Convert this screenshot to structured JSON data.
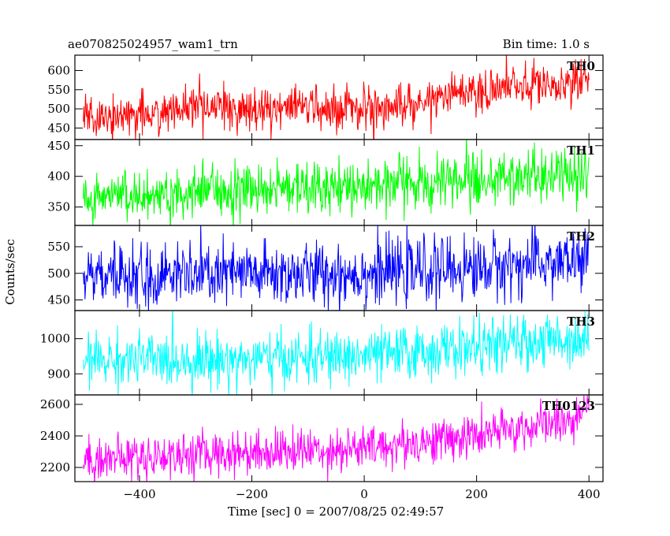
{
  "chart_data": {
    "type": "line",
    "title": "ae070825024957_wam1_trn",
    "bin_time": "Bin time: 1.0 s",
    "xlabel": "Time [sec] 0 = 2007/08/25 02:49:57",
    "ylabel": "Counts/sec",
    "xlim": [
      -515,
      425
    ],
    "xticks": [
      -400,
      -200,
      0,
      200,
      400
    ],
    "grid": false,
    "legend": "none",
    "panels": [
      {
        "name": "TH0",
        "color": "#ff0000",
        "ylim": [
          420,
          640
        ],
        "yticks": [
          450,
          500,
          550,
          600
        ],
        "trend": [
          [
            -500,
            475
          ],
          [
            -300,
            500
          ],
          [
            0,
            505
          ],
          [
            100,
            515
          ],
          [
            120,
            530
          ],
          [
            300,
            560
          ],
          [
            400,
            575
          ]
        ],
        "noise": 28
      },
      {
        "name": "TH1",
        "color": "#00ff00",
        "ylim": [
          320,
          460
        ],
        "yticks": [
          350,
          400,
          450
        ],
        "trend": [
          [
            -500,
            365
          ],
          [
            -200,
            380
          ],
          [
            0,
            385
          ],
          [
            200,
            395
          ],
          [
            400,
            400
          ]
        ],
        "noise": 22
      },
      {
        "name": "TH2",
        "color": "#0000ff",
        "ylim": [
          430,
          590
        ],
        "yticks": [
          450,
          500,
          550
        ],
        "trend": [
          [
            -500,
            495
          ],
          [
            0,
            500
          ],
          [
            200,
            510
          ],
          [
            400,
            525
          ]
        ],
        "noise": 30
      },
      {
        "name": "TH3",
        "color": "#00ffff",
        "ylim": [
          840,
          1080
        ],
        "yticks": [
          900,
          1000
        ],
        "trend": [
          [
            -500,
            940
          ],
          [
            -200,
            940
          ],
          [
            0,
            950
          ],
          [
            200,
            975
          ],
          [
            400,
            1005
          ]
        ],
        "noise": 38
      },
      {
        "name": "TH0123",
        "color": "#ff00ff",
        "ylim": [
          2110,
          2660
        ],
        "yticks": [
          2200,
          2400,
          2600
        ],
        "trend": [
          [
            -500,
            2250
          ],
          [
            -200,
            2300
          ],
          [
            0,
            2320
          ],
          [
            200,
            2400
          ],
          [
            400,
            2520
          ]
        ],
        "noise": 70
      }
    ]
  }
}
